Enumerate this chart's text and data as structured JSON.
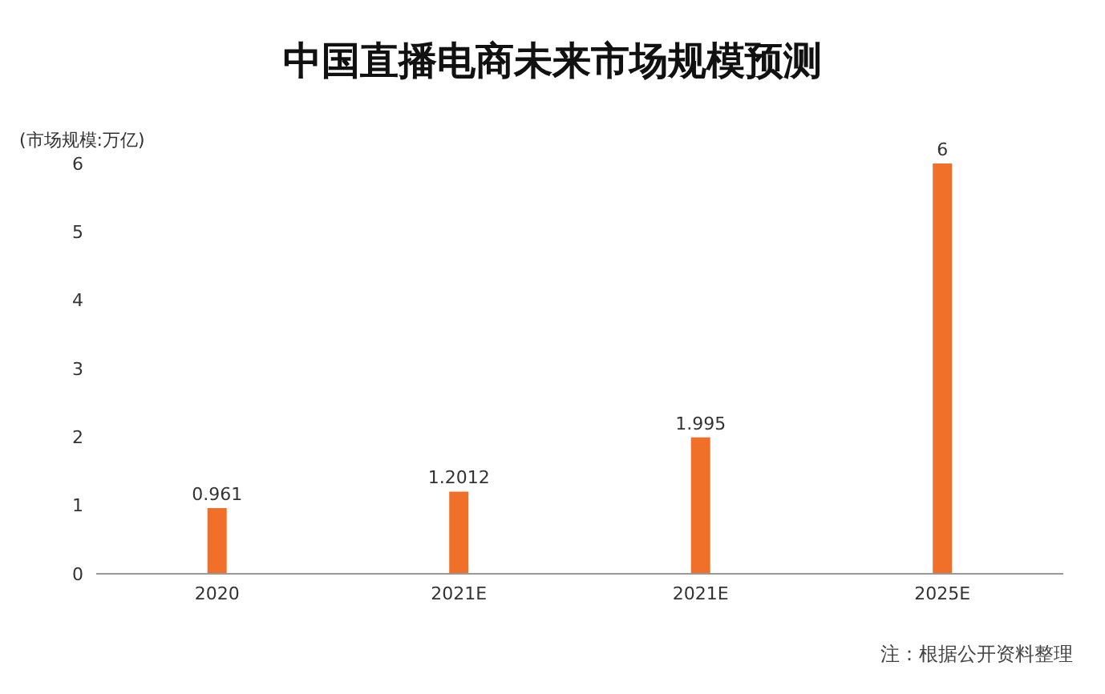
{
  "chart_data": {
    "type": "bar",
    "title": "中国直播电商未来市场规模预测",
    "ylabel": "(市场规模:万亿)",
    "categories": [
      "2020",
      "2021E",
      "2021E",
      "2025E"
    ],
    "values": [
      0.961,
      1.2012,
      1.995,
      6
    ],
    "color": "#f0702a",
    "ylim": [
      0,
      6
    ],
    "yticks": [
      0,
      1,
      2,
      3,
      4,
      5,
      6
    ],
    "grid": false,
    "data_labels": true,
    "annotations": [
      "注：根据公开资料整理"
    ]
  }
}
